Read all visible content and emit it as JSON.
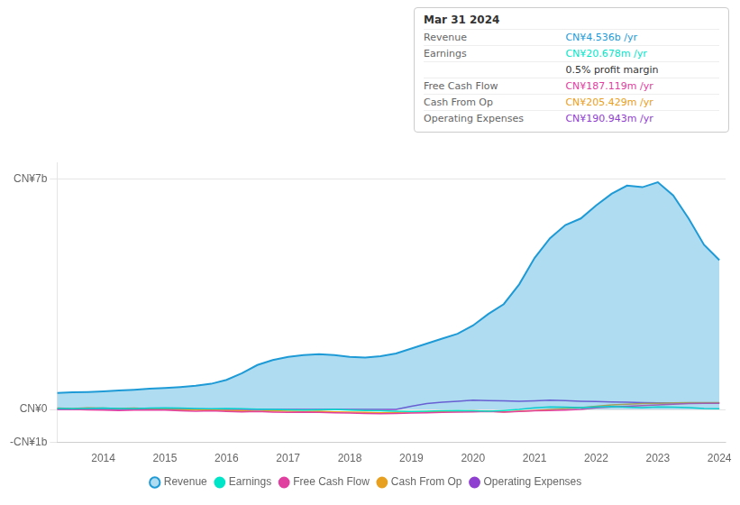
{
  "chart_data": {
    "type": "line",
    "annotations": [
      {
        "text": "Mar 31 2024"
      },
      {
        "label": "Revenue",
        "text": "CN¥4.536b /yr"
      },
      {
        "label": "Earnings",
        "text": "CN¥20.678m /yr"
      },
      {
        "text": "0.5% profit margin"
      },
      {
        "label": "Free Cash Flow",
        "text": "CN¥187.119m /yr"
      },
      {
        "label": "Cash From Op",
        "text": "CN¥205.429m /yr"
      },
      {
        "label": "Operating Expenses",
        "text": "CN¥190.943m /yr"
      }
    ],
    "x": [
      2013.25,
      2013.5,
      2013.75,
      2014.0,
      2014.25,
      2014.5,
      2014.75,
      2015.0,
      2015.25,
      2015.5,
      2015.75,
      2016.0,
      2016.25,
      2016.5,
      2016.75,
      2017.0,
      2017.25,
      2017.5,
      2017.75,
      2018.0,
      2018.25,
      2018.5,
      2018.75,
      2019.0,
      2019.25,
      2019.5,
      2019.75,
      2020.0,
      2020.25,
      2020.5,
      2020.75,
      2021.0,
      2021.25,
      2021.5,
      2021.75,
      2022.0,
      2022.25,
      2022.5,
      2022.75,
      2023.0,
      2023.25,
      2023.5,
      2023.75,
      2024.0
    ],
    "series": [
      {
        "name": "Revenue",
        "color": "#1e9bd6",
        "fill": true,
        "values": [
          0.5,
          0.52,
          0.53,
          0.55,
          0.58,
          0.6,
          0.63,
          0.65,
          0.68,
          0.72,
          0.78,
          0.9,
          1.1,
          1.35,
          1.5,
          1.6,
          1.65,
          1.68,
          1.65,
          1.6,
          1.58,
          1.62,
          1.7,
          1.85,
          2.0,
          2.15,
          2.3,
          2.55,
          2.9,
          3.2,
          3.8,
          4.6,
          5.2,
          5.6,
          5.8,
          6.2,
          6.55,
          6.8,
          6.75,
          6.9,
          6.5,
          5.8,
          5.0,
          4.536
        ]
      },
      {
        "name": "Earnings",
        "color": "#00e5c8",
        "values": [
          0.03,
          0.02,
          0.03,
          0.04,
          0.03,
          0.02,
          0.04,
          0.05,
          0.04,
          0.03,
          0.02,
          0.03,
          0.02,
          0.01,
          0.0,
          -0.01,
          -0.02,
          -0.01,
          0.0,
          -0.02,
          -0.03,
          -0.04,
          -0.05,
          -0.06,
          -0.05,
          -0.04,
          -0.03,
          -0.04,
          -0.05,
          -0.03,
          0.0,
          0.05,
          0.08,
          0.07,
          0.06,
          0.08,
          0.09,
          0.07,
          0.06,
          0.08,
          0.07,
          0.06,
          0.03,
          0.021
        ]
      },
      {
        "name": "Free Cash Flow",
        "color": "#e040a0",
        "values": [
          0.01,
          0.0,
          -0.01,
          -0.02,
          -0.03,
          -0.02,
          -0.01,
          -0.02,
          -0.04,
          -0.05,
          -0.04,
          -0.06,
          -0.07,
          -0.06,
          -0.08,
          -0.09,
          -0.08,
          -0.09,
          -0.1,
          -0.11,
          -0.12,
          -0.13,
          -0.12,
          -0.11,
          -0.1,
          -0.09,
          -0.08,
          -0.07,
          -0.06,
          -0.08,
          -0.06,
          -0.04,
          -0.03,
          -0.02,
          0.0,
          0.05,
          0.08,
          0.1,
          0.12,
          0.14,
          0.16,
          0.18,
          0.19,
          0.187
        ]
      },
      {
        "name": "Cash From Op",
        "color": "#e8a020",
        "values": [
          0.04,
          0.03,
          0.05,
          0.04,
          0.03,
          0.04,
          0.02,
          0.01,
          0.0,
          -0.01,
          -0.02,
          -0.03,
          -0.04,
          -0.05,
          -0.04,
          -0.05,
          -0.06,
          -0.05,
          -0.07,
          -0.08,
          -0.09,
          -0.1,
          -0.09,
          -0.08,
          -0.07,
          -0.06,
          -0.05,
          -0.04,
          -0.05,
          -0.07,
          -0.05,
          -0.03,
          0.0,
          0.03,
          0.06,
          0.1,
          0.14,
          0.16,
          0.18,
          0.19,
          0.2,
          0.21,
          0.21,
          0.205
        ]
      },
      {
        "name": "Operating Expenses",
        "color": "#9040d0",
        "values": [
          0.0,
          0.0,
          0.0,
          0.0,
          0.0,
          0.0,
          0.0,
          0.0,
          0.0,
          0.0,
          0.0,
          0.0,
          0.0,
          0.0,
          0.0,
          0.0,
          0.0,
          0.0,
          0.0,
          0.0,
          0.0,
          0.0,
          0.0,
          0.1,
          0.18,
          0.22,
          0.25,
          0.28,
          0.27,
          0.26,
          0.25,
          0.26,
          0.28,
          0.27,
          0.25,
          0.24,
          0.23,
          0.22,
          0.21,
          0.2,
          0.2,
          0.19,
          0.19,
          0.191
        ]
      }
    ],
    "xlim": [
      2013.25,
      2024.1
    ],
    "xticks": [
      2014,
      2015,
      2016,
      2017,
      2018,
      2019,
      2020,
      2021,
      2022,
      2023,
      2024
    ],
    "ylim": [
      -1.0,
      7.5
    ],
    "yticks": [
      {
        "value": -1.0,
        "label": "-CN¥1b"
      },
      {
        "value": 0,
        "label": "CN¥0"
      },
      {
        "value": 7.0,
        "label": "CN¥7b"
      }
    ],
    "grid": true,
    "legend": "bottom"
  }
}
